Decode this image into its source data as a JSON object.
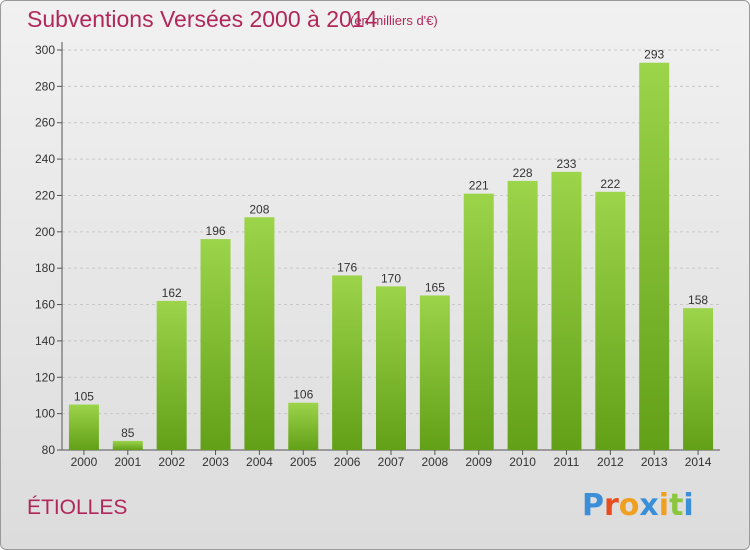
{
  "header": {
    "title": "Subventions Versées 2000 à 2014",
    "subtitle": "(en milliers d'€)"
  },
  "footer": {
    "commune": "ÉTIOLLES",
    "logo_text": "Proxiti"
  },
  "colors": {
    "title": "#b0285a",
    "bar_light": "#9cd44a",
    "bar_dark": "#62a018",
    "logo_letters": [
      "#3b8fd8",
      "#e84c1c",
      "#f0a020",
      "#3b8fd8",
      "#f0a020",
      "#8cc63f",
      "#3b8fd8"
    ]
  },
  "chart_data": {
    "type": "bar",
    "title": "Subventions Versées 2000 à 2014",
    "categories": [
      "2000",
      "2001",
      "2002",
      "2003",
      "2004",
      "2005",
      "2006",
      "2007",
      "2008",
      "2009",
      "2010",
      "2011",
      "2012",
      "2013",
      "2014"
    ],
    "values": [
      105,
      85,
      162,
      196,
      208,
      106,
      176,
      170,
      165,
      221,
      228,
      233,
      222,
      293,
      158
    ],
    "ylim": [
      80,
      300
    ],
    "yticks": [
      80,
      100,
      120,
      140,
      160,
      180,
      200,
      220,
      240,
      260,
      280,
      300
    ],
    "grid": true,
    "xlabel": "",
    "ylabel": ""
  }
}
